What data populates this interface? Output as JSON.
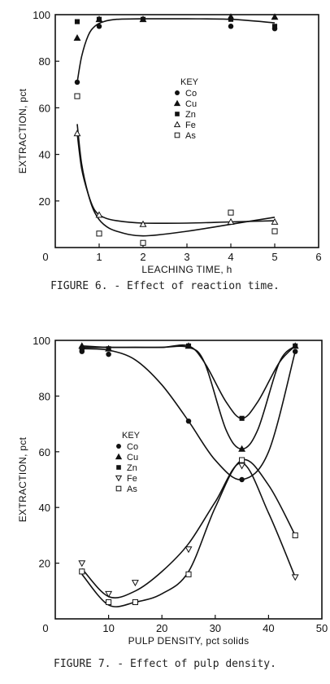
{
  "chart_data": [
    {
      "type": "scatter",
      "caption": "FIGURE 6. - Effect of reaction time.",
      "xlabel": "LEACHING TIME, h",
      "ylabel": "EXTRACTION, pct",
      "xlim": [
        0,
        6
      ],
      "ylim": [
        0,
        100
      ],
      "xticks": [
        0,
        1,
        2,
        3,
        4,
        5,
        6
      ],
      "yticks": [
        20,
        40,
        60,
        80,
        100
      ],
      "grid": false,
      "legend_title": "KEY",
      "legend_position": "center",
      "series": [
        {
          "name": "Co",
          "marker": "filled-circle",
          "x": [
            0.5,
            1,
            2,
            4,
            5
          ],
          "y": [
            71,
            95,
            98,
            95,
            94
          ]
        },
        {
          "name": "Cu",
          "marker": "filled-triangle",
          "x": [
            0.5,
            1,
            2,
            4,
            5
          ],
          "y": [
            90,
            98,
            98,
            99,
            99
          ]
        },
        {
          "name": "Zn",
          "marker": "filled-square",
          "x": [
            0.5,
            1,
            2,
            4,
            5
          ],
          "y": [
            97,
            98,
            98,
            98,
            95
          ]
        },
        {
          "name": "Fe",
          "marker": "open-triangle",
          "x": [
            0.5,
            1,
            2,
            4,
            5
          ],
          "y": [
            49,
            14,
            10,
            11,
            11
          ]
        },
        {
          "name": "As",
          "marker": "open-square",
          "x": [
            0.5,
            1,
            2,
            4,
            5
          ],
          "y": [
            65,
            6,
            2,
            15,
            7
          ]
        }
      ],
      "curves": [
        {
          "x": [
            0.5,
            0.6,
            0.75,
            0.9,
            1.1,
            1.4,
            2,
            3,
            4,
            5
          ],
          "y": [
            71,
            82,
            91,
            95,
            97,
            98,
            98.2,
            98.2,
            98,
            96.5
          ]
        },
        {
          "x": [
            0.5,
            0.6,
            0.75,
            0.9,
            1.1,
            1.4,
            2,
            3,
            4,
            5
          ],
          "y": [
            53,
            36,
            23,
            15,
            10,
            7,
            5,
            7,
            10,
            13
          ]
        },
        {
          "x": [
            0.5,
            0.6,
            0.75,
            0.9,
            1.1,
            1.4,
            2,
            3,
            4,
            5
          ],
          "y": [
            49,
            34,
            23,
            16,
            13,
            11.5,
            10.5,
            10.5,
            11,
            11.5
          ]
        }
      ]
    },
    {
      "type": "scatter",
      "caption": "FIGURE 7. - Effect of pulp density.",
      "xlabel": "PULP DENSITY, pct solids",
      "ylabel": "EXTRACTION, pct",
      "xlim": [
        0,
        50
      ],
      "ylim": [
        0,
        100
      ],
      "xticks": [
        0,
        10,
        20,
        30,
        40,
        50
      ],
      "yticks": [
        20,
        40,
        60,
        80,
        100
      ],
      "grid": false,
      "legend_title": "KEY",
      "legend_position": "center-left",
      "series": [
        {
          "name": "Co",
          "marker": "filled-circle",
          "x": [
            5,
            10,
            25,
            35,
            45
          ],
          "y": [
            96,
            95,
            71,
            50,
            96
          ]
        },
        {
          "name": "Cu",
          "marker": "filled-triangle",
          "x": [
            5,
            10,
            25,
            35,
            45
          ],
          "y": [
            98,
            97,
            98,
            61,
            98
          ]
        },
        {
          "name": "Zn",
          "marker": "filled-square",
          "x": [
            5,
            10,
            25,
            35,
            45
          ],
          "y": [
            97,
            97,
            98,
            72,
            98
          ]
        },
        {
          "name": "Fe",
          "marker": "open-inverted-triangle",
          "x": [
            5,
            10,
            15,
            25,
            35,
            45
          ],
          "y": [
            20,
            9,
            13,
            25,
            55,
            15
          ]
        },
        {
          "name": "As",
          "marker": "open-square",
          "x": [
            5,
            10,
            15,
            25,
            35,
            45
          ],
          "y": [
            17,
            6,
            6,
            16,
            57,
            30
          ]
        }
      ],
      "curves": [
        {
          "x": [
            5,
            10,
            15,
            20,
            25,
            30,
            35,
            40,
            45
          ],
          "y": [
            97,
            96.5,
            93,
            84,
            71,
            57,
            50,
            60,
            96
          ]
        },
        {
          "x": [
            5,
            10,
            15,
            20,
            25,
            28,
            32,
            35,
            38,
            42,
            45
          ],
          "y": [
            98,
            97.5,
            97.5,
            97.5,
            97.5,
            92,
            68,
            61,
            68,
            92,
            98
          ]
        },
        {
          "x": [
            5,
            10,
            15,
            20,
            25,
            28,
            32,
            35,
            38,
            42,
            45
          ],
          "y": [
            97.5,
            97.5,
            97.5,
            97.5,
            98,
            92,
            78,
            72,
            78,
            92,
            98
          ]
        },
        {
          "x": [
            5,
            10,
            15,
            20,
            25,
            30,
            35,
            40,
            45
          ],
          "y": [
            18,
            8,
            10,
            17,
            27,
            42,
            56,
            38,
            15
          ]
        },
        {
          "x": [
            5,
            10,
            15,
            20,
            25,
            30,
            35,
            40,
            45
          ],
          "y": [
            16,
            5,
            6,
            9,
            17,
            40,
            57,
            48,
            30
          ]
        }
      ]
    }
  ]
}
